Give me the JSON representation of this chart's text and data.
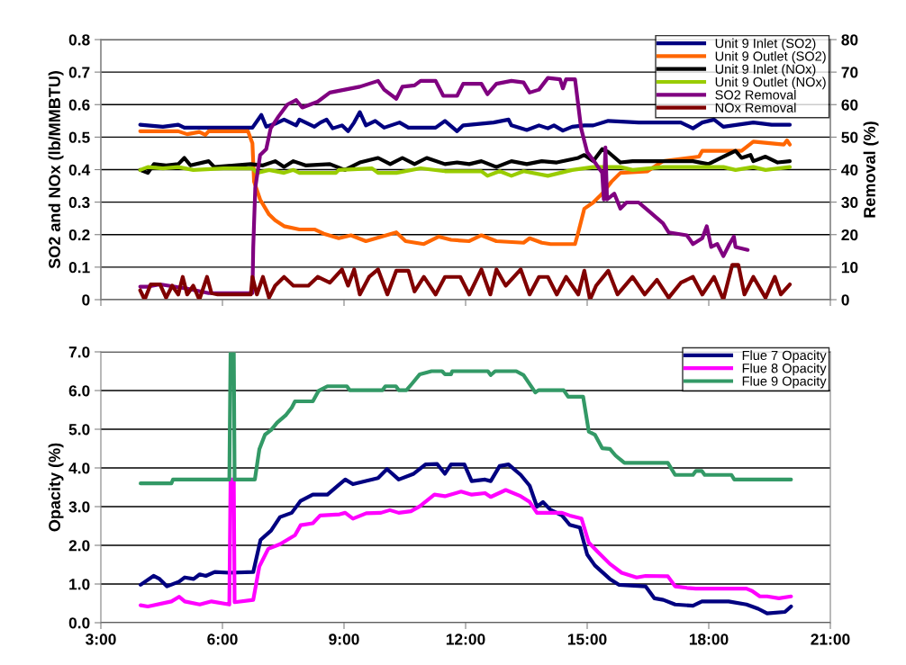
{
  "chart_data": [
    {
      "type": "line",
      "ylabel": "SO2 and NOx (lb/MMBTU)",
      "y2label": "Removal (%)",
      "xlim": [
        3,
        21
      ],
      "xticks": [
        {
          "value": 3,
          "label": null
        },
        {
          "value": 6,
          "label": null
        },
        {
          "value": 9,
          "label": null
        },
        {
          "value": 12,
          "label": null
        },
        {
          "value": 15,
          "label": null
        },
        {
          "value": 18,
          "label": null
        },
        {
          "value": 21,
          "label": null
        }
      ],
      "ylim": [
        0,
        0.8
      ],
      "yticks": [
        0,
        0.1,
        0.2,
        0.3,
        0.4,
        0.5,
        0.6,
        0.7,
        0.8
      ],
      "y2lim": [
        0,
        80
      ],
      "y2ticks": [
        0,
        10,
        20,
        30,
        40,
        50,
        60,
        70,
        80
      ],
      "tick_labels": "y",
      "grid": "y",
      "legend": "top right",
      "marker": "none",
      "line_style": "solid",
      "series": [
        {
          "name": "Unit 9 Inlet (SO2)",
          "color": "#000080",
          "x": [
            3.97,
            4.53,
            4.91,
            5.06,
            6.74,
            6.96,
            7.08,
            7.3,
            7.52,
            7.82,
            7.9,
            8.05,
            8.27,
            8.42,
            8.57,
            8.72,
            8.95,
            9.1,
            9.25,
            9.39,
            9.54,
            9.77,
            9.99,
            10.37,
            10.59,
            11.26,
            11.49,
            11.79,
            11.94,
            12.69,
            13.06,
            13.13,
            13.51,
            13.81,
            14.03,
            14.18,
            14.4,
            14.63,
            14.93,
            15.15,
            15.52,
            16.27,
            17.31,
            17.61,
            17.84,
            18.13,
            18.36,
            19.1,
            19.55,
            20.0
          ],
          "values": [
            0.538,
            0.532,
            0.538,
            0.529,
            0.529,
            0.568,
            0.532,
            0.541,
            0.554,
            0.536,
            0.554,
            0.545,
            0.532,
            0.545,
            0.554,
            0.527,
            0.536,
            0.518,
            0.545,
            0.577,
            0.536,
            0.55,
            0.529,
            0.545,
            0.529,
            0.529,
            0.55,
            0.518,
            0.536,
            0.545,
            0.554,
            0.536,
            0.522,
            0.536,
            0.527,
            0.536,
            0.52,
            0.532,
            0.536,
            0.536,
            0.55,
            0.545,
            0.545,
            0.527,
            0.545,
            0.554,
            0.532,
            0.545,
            0.538,
            0.538
          ]
        },
        {
          "name": "Unit 9 Outlet (SO2)",
          "color": "#ff6600",
          "x": [
            3.97,
            4.91,
            5.13,
            5.43,
            5.58,
            5.66,
            6.63,
            6.74,
            6.78,
            6.93,
            7.15,
            7.3,
            7.52,
            7.9,
            8.27,
            8.5,
            8.87,
            9.17,
            9.54,
            10.29,
            10.52,
            10.97,
            11.34,
            11.64,
            12.09,
            12.39,
            12.76,
            13.43,
            13.58,
            13.88,
            14.1,
            14.7,
            14.78,
            14.93,
            15.15,
            15.37,
            15.6,
            15.82,
            16.49,
            16.87,
            17.76,
            17.84,
            18.81,
            19.1,
            19.85,
            19.93,
            20.0
          ],
          "values": [
            0.518,
            0.518,
            0.509,
            0.516,
            0.507,
            0.518,
            0.518,
            0.481,
            0.363,
            0.308,
            0.262,
            0.244,
            0.226,
            0.216,
            0.216,
            0.203,
            0.189,
            0.198,
            0.18,
            0.207,
            0.18,
            0.171,
            0.194,
            0.184,
            0.18,
            0.198,
            0.18,
            0.175,
            0.189,
            0.175,
            0.171,
            0.171,
            0.207,
            0.28,
            0.299,
            0.326,
            0.363,
            0.39,
            0.395,
            0.426,
            0.44,
            0.458,
            0.458,
            0.486,
            0.477,
            0.49,
            0.477
          ]
        },
        {
          "name": "Unit 9 Inlet (NOx)",
          "color": "#000000",
          "x": [
            3.97,
            4.16,
            4.31,
            4.61,
            4.91,
            5.06,
            5.21,
            5.66,
            5.8,
            6.7,
            7.0,
            7.3,
            7.52,
            7.75,
            8.05,
            8.65,
            9.02,
            9.39,
            9.84,
            10.14,
            10.44,
            10.74,
            11.04,
            11.49,
            11.79,
            12.09,
            12.39,
            12.76,
            13.13,
            13.51,
            13.88,
            14.25,
            14.78,
            14.93,
            15.15,
            15.37,
            15.52,
            15.82,
            16.12,
            16.87,
            17.61,
            17.99,
            18.36,
            18.66,
            18.81,
            19.03,
            19.1,
            19.4,
            19.7,
            20.0
          ],
          "values": [
            0.399,
            0.39,
            0.417,
            0.413,
            0.417,
            0.436,
            0.413,
            0.426,
            0.408,
            0.417,
            0.413,
            0.426,
            0.408,
            0.426,
            0.413,
            0.417,
            0.399,
            0.422,
            0.436,
            0.417,
            0.436,
            0.417,
            0.436,
            0.417,
            0.422,
            0.417,
            0.426,
            0.408,
            0.426,
            0.417,
            0.426,
            0.422,
            0.436,
            0.445,
            0.426,
            0.463,
            0.454,
            0.422,
            0.426,
            0.426,
            0.426,
            0.417,
            0.44,
            0.458,
            0.436,
            0.445,
            0.426,
            0.44,
            0.422,
            0.426
          ]
        },
        {
          "name": "Unit 9 Outlet (NOx)",
          "color": "#99cc00",
          "x": [
            3.97,
            4.16,
            4.53,
            4.91,
            5.28,
            6.03,
            6.74,
            6.85,
            7.15,
            7.52,
            7.75,
            7.9,
            8.8,
            8.87,
            9.69,
            9.84,
            10.29,
            10.89,
            11.49,
            12.39,
            12.54,
            12.84,
            13.13,
            13.43,
            14.03,
            14.63,
            15.15,
            15.82,
            16.12,
            16.87,
            18.36,
            18.66,
            19.1,
            19.4,
            20.0
          ],
          "values": [
            0.399,
            0.408,
            0.404,
            0.408,
            0.399,
            0.404,
            0.404,
            0.39,
            0.399,
            0.39,
            0.399,
            0.39,
            0.39,
            0.399,
            0.404,
            0.39,
            0.39,
            0.404,
            0.395,
            0.395,
            0.381,
            0.395,
            0.381,
            0.395,
            0.381,
            0.399,
            0.408,
            0.408,
            0.399,
            0.408,
            0.408,
            0.399,
            0.408,
            0.399,
            0.408
          ]
        },
        {
          "name": "SO2 Removal",
          "color": "#800080",
          "axis": "y2",
          "x": [
            3.97,
            4.16,
            4.46,
            5.13,
            5.66,
            6.74,
            6.76,
            6.81,
            6.93,
            7.08,
            7.19,
            7.38,
            7.6,
            7.82,
            7.97,
            8.35,
            8.65,
            9.02,
            9.39,
            9.84,
            9.99,
            10.29,
            10.44,
            10.74,
            10.89,
            11.26,
            11.45,
            11.79,
            11.94,
            12.39,
            12.54,
            12.76,
            13.13,
            13.43,
            13.58,
            13.81,
            14.03,
            14.33,
            14.4,
            14.48,
            14.7,
            14.85,
            15.0,
            15.22,
            15.37,
            15.41,
            15.45,
            15.49,
            15.67,
            15.82,
            15.97,
            16.27,
            16.49,
            16.87,
            17.01,
            17.46,
            17.61,
            17.84,
            17.95,
            18.06,
            18.21,
            18.36,
            18.51,
            18.62,
            18.66,
            18.96
          ],
          "values": [
            4.0,
            4.0,
            4.7,
            3.4,
            2.0,
            2.0,
            16.2,
            34.4,
            44.5,
            46.3,
            52.7,
            56.3,
            60.0,
            61.4,
            59.1,
            60.9,
            63.7,
            64.6,
            65.5,
            67.3,
            64.6,
            61.8,
            65.5,
            65.9,
            67.3,
            67.3,
            62.7,
            62.7,
            66.4,
            66.4,
            63.2,
            66.4,
            67.3,
            66.8,
            63.7,
            64.6,
            68.2,
            67.8,
            65.0,
            67.8,
            67.8,
            52.7,
            45.4,
            41.7,
            39.0,
            30.8,
            46.8,
            30.8,
            32.6,
            28.0,
            29.9,
            29.9,
            27.6,
            23.5,
            20.7,
            19.8,
            17.1,
            18.9,
            22.6,
            16.2,
            17.1,
            13.4,
            17.1,
            19.4,
            16.2,
            15.3
          ]
        },
        {
          "name": "NOx Removal",
          "color": "#800000",
          "axis": "y2",
          "x": [
            3.97,
            4.08,
            4.23,
            4.46,
            4.61,
            4.76,
            4.91,
            5.02,
            5.13,
            5.28,
            5.43,
            5.62,
            5.73,
            5.88,
            6.7,
            6.74,
            6.85,
            7.0,
            7.15,
            7.3,
            7.52,
            7.75,
            8.12,
            8.35,
            8.65,
            8.95,
            9.1,
            9.25,
            9.39,
            9.62,
            9.84,
            10.07,
            10.29,
            10.59,
            10.74,
            10.97,
            11.26,
            11.49,
            11.87,
            12.09,
            12.39,
            12.61,
            12.76,
            12.99,
            13.36,
            13.58,
            13.81,
            14.03,
            14.25,
            14.48,
            14.78,
            14.93,
            15.07,
            15.22,
            15.52,
            15.75,
            16.12,
            16.42,
            16.72,
            17.01,
            17.31,
            17.61,
            17.84,
            18.13,
            18.36,
            18.58,
            18.73,
            18.88,
            19.1,
            19.4,
            19.63,
            19.78,
            20.0
          ],
          "values": [
            2.9,
            0,
            4.7,
            4.7,
            0.6,
            4.3,
            1.6,
            7.0,
            1.6,
            4.3,
            0,
            7.0,
            2.0,
            1.6,
            1.6,
            7.0,
            1.6,
            7.0,
            0.6,
            4.3,
            7.0,
            4.3,
            4.3,
            7.0,
            5.2,
            9.3,
            4.3,
            9.3,
            1.6,
            7.0,
            9.3,
            1.6,
            8.9,
            8.9,
            2.5,
            7.0,
            1.6,
            7.0,
            7.0,
            1.6,
            9.3,
            1.6,
            9.3,
            4.3,
            9.3,
            1.6,
            7.0,
            7.0,
            1.6,
            7.0,
            1.6,
            8.9,
            0,
            4.3,
            8.9,
            1.6,
            7.0,
            1.6,
            6.1,
            0.6,
            5.2,
            7.0,
            1.6,
            7.0,
            0,
            10.7,
            10.7,
            1.6,
            7.0,
            0.6,
            7.0,
            1.6,
            4.7
          ]
        }
      ]
    },
    {
      "type": "line",
      "ylabel": "Opacity (%)",
      "xlim": [
        3,
        21
      ],
      "xticks": [
        {
          "value": 3,
          "label": "3:00"
        },
        {
          "value": 6,
          "label": "6:00"
        },
        {
          "value": 9,
          "label": "9:00"
        },
        {
          "value": 12,
          "label": "12:00"
        },
        {
          "value": 15,
          "label": "15:00"
        },
        {
          "value": 18,
          "label": "18:00"
        },
        {
          "value": 21,
          "label": "21:00"
        }
      ],
      "ylim": [
        0,
        7
      ],
      "yticks": [
        {
          "value": 0,
          "label": "0.0"
        },
        {
          "value": 1,
          "label": "1.0"
        },
        {
          "value": 2,
          "label": "2.0"
        },
        {
          "value": 3,
          "label": "3.0"
        },
        {
          "value": 4,
          "label": "4.0"
        },
        {
          "value": 5,
          "label": "5.0"
        },
        {
          "value": 6,
          "label": "6.0"
        },
        {
          "value": 7,
          "label": "7.0"
        }
      ],
      "grid": "y",
      "legend": "top right",
      "marker": "none",
      "line_style": "solid",
      "series": [
        {
          "name": "Flue 7 Opacity",
          "color": "#000080",
          "x": [
            3.98,
            4.3,
            4.45,
            4.63,
            4.93,
            5.07,
            5.29,
            5.44,
            5.59,
            5.81,
            6.17,
            6.76,
            6.94,
            7.2,
            7.42,
            7.71,
            7.93,
            8.23,
            8.59,
            8.89,
            9.03,
            9.22,
            9.84,
            10.06,
            10.35,
            10.72,
            11.01,
            11.3,
            11.49,
            11.64,
            11.97,
            12.15,
            12.48,
            12.62,
            12.84,
            13.06,
            13.36,
            13.58,
            13.76,
            13.91,
            14.09,
            14.38,
            14.57,
            14.82,
            15.0,
            15.19,
            15.56,
            15.78,
            16.44,
            16.66,
            16.88,
            17.17,
            17.61,
            17.83,
            18.49,
            18.93,
            19.22,
            19.44,
            19.88,
            20.03
          ],
          "values": [
            0.98,
            1.21,
            1.13,
            0.94,
            1.06,
            1.17,
            1.13,
            1.25,
            1.21,
            1.31,
            1.29,
            1.31,
            2.14,
            2.38,
            2.73,
            2.84,
            3.15,
            3.31,
            3.31,
            3.58,
            3.7,
            3.58,
            3.74,
            3.97,
            3.7,
            3.85,
            4.09,
            4.1,
            3.85,
            4.09,
            4.09,
            3.66,
            3.7,
            3.66,
            4.05,
            4.09,
            3.82,
            3.54,
            3.0,
            3.12,
            2.92,
            2.77,
            2.53,
            2.46,
            1.76,
            1.48,
            1.13,
            0.98,
            0.94,
            0.63,
            0.59,
            0.47,
            0.44,
            0.55,
            0.55,
            0.47,
            0.36,
            0.24,
            0.28,
            0.42
          ]
        },
        {
          "name": "Flue 8 Opacity",
          "color": "#ff00ff",
          "x": [
            3.98,
            4.16,
            4.74,
            4.93,
            5.07,
            5.44,
            5.73,
            6.17,
            6.2,
            6.28,
            6.3,
            6.76,
            6.91,
            7.13,
            7.42,
            7.79,
            7.93,
            8.23,
            8.41,
            8.89,
            9.03,
            9.22,
            9.55,
            9.91,
            10.13,
            10.35,
            10.65,
            10.87,
            11.23,
            11.49,
            11.89,
            12.15,
            12.48,
            12.62,
            12.99,
            13.36,
            13.58,
            13.76,
            14.38,
            14.57,
            14.86,
            15.04,
            15.26,
            15.56,
            15.85,
            16.22,
            16.44,
            16.99,
            17.17,
            17.46,
            17.68,
            18.93,
            19.07,
            19.26,
            19.44,
            19.73,
            20.03
          ],
          "values": [
            0.45,
            0.42,
            0.55,
            0.67,
            0.55,
            0.47,
            0.55,
            0.47,
            3.7,
            3.7,
            0.53,
            0.59,
            1.45,
            1.91,
            2.03,
            2.26,
            2.52,
            2.57,
            2.77,
            2.8,
            2.84,
            2.69,
            2.83,
            2.84,
            2.91,
            2.84,
            2.88,
            3.01,
            3.31,
            3.27,
            3.39,
            3.31,
            3.35,
            3.25,
            3.43,
            3.27,
            3.12,
            2.84,
            2.84,
            2.77,
            2.69,
            2.07,
            1.83,
            1.52,
            1.29,
            1.17,
            1.21,
            1.2,
            0.94,
            0.9,
            0.88,
            0.88,
            0.82,
            0.68,
            0.68,
            0.63,
            0.68
          ]
        },
        {
          "name": "Flue 9 Opacity",
          "color": "#339966",
          "x": [
            3.98,
            4.74,
            4.78,
            6.17,
            6.2,
            6.28,
            6.3,
            6.8,
            6.91,
            7.05,
            7.2,
            7.35,
            7.57,
            7.71,
            7.79,
            8.23,
            8.37,
            8.59,
            9.07,
            9.14,
            9.95,
            10.02,
            10.28,
            10.35,
            10.54,
            10.68,
            10.87,
            11.16,
            11.42,
            11.49,
            11.64,
            11.67,
            12.55,
            12.62,
            12.73,
            13.25,
            13.43,
            13.72,
            13.8,
            14.42,
            14.53,
            14.9,
            15.04,
            15.19,
            15.37,
            15.56,
            15.7,
            15.92,
            16.99,
            17.17,
            17.61,
            17.68,
            17.83,
            17.9,
            18.56,
            18.63,
            20.03
          ],
          "values": [
            3.6,
            3.6,
            3.7,
            3.7,
            7.0,
            7.0,
            3.7,
            3.7,
            4.48,
            4.86,
            4.98,
            5.17,
            5.37,
            5.56,
            5.72,
            5.72,
            5.99,
            6.11,
            6.11,
            6.01,
            6.01,
            6.11,
            6.11,
            6.01,
            6.01,
            6.18,
            6.42,
            6.5,
            6.5,
            6.42,
            6.42,
            6.5,
            6.5,
            6.4,
            6.5,
            6.5,
            6.4,
            5.95,
            6.01,
            6.01,
            5.84,
            5.84,
            4.94,
            4.86,
            4.51,
            4.49,
            4.32,
            4.13,
            4.13,
            3.82,
            3.82,
            3.92,
            3.92,
            3.82,
            3.82,
            3.7,
            3.7
          ]
        }
      ]
    }
  ]
}
